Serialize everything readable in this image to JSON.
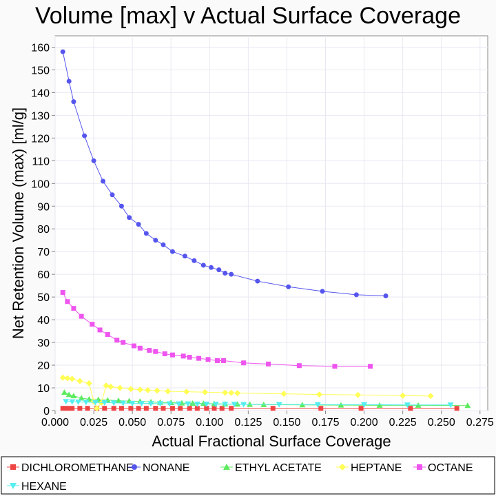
{
  "chart_data": {
    "type": "line",
    "title": "Volume [max] v Actual Surface Coverage",
    "xlabel": "Actual Fractional Surface Coverage",
    "ylabel": "Net Retention Volume (max) [ml/g]",
    "xlim": [
      0,
      0.28
    ],
    "ylim": [
      0,
      165
    ],
    "xticks": [
      "0.000",
      "0.025",
      "0.050",
      "0.075",
      "0.100",
      "0.125",
      "0.150",
      "0.175",
      "0.200",
      "0.225",
      "0.250",
      "0.275"
    ],
    "yticks": [
      "0",
      "10",
      "20",
      "30",
      "40",
      "50",
      "60",
      "70",
      "80",
      "90",
      "100",
      "110",
      "120",
      "130",
      "140",
      "150",
      "160"
    ],
    "grid": true,
    "legend_position": "bottom",
    "series": [
      {
        "name": "DICHLOROMETHANE",
        "color": "#ef4444",
        "marker": "square",
        "x": [
          0.005,
          0.008,
          0.011,
          0.016,
          0.021,
          0.027,
          0.032,
          0.038,
          0.043,
          0.049,
          0.054,
          0.059,
          0.065,
          0.07,
          0.076,
          0.081,
          0.087,
          0.092,
          0.098,
          0.103,
          0.108,
          0.114,
          0.141,
          0.172,
          0.198,
          0.23,
          0.26
        ],
        "y": [
          1,
          1,
          1,
          1,
          1,
          1,
          1,
          1,
          1,
          1,
          1,
          1,
          1,
          1,
          1,
          1,
          1,
          1,
          1,
          1,
          1,
          1,
          1,
          1,
          1,
          1,
          1
        ]
      },
      {
        "name": "NONANE",
        "color": "#5555ee",
        "marker": "circle",
        "x": [
          0.005,
          0.009,
          0.012,
          0.019,
          0.025,
          0.031,
          0.037,
          0.043,
          0.048,
          0.054,
          0.059,
          0.065,
          0.07,
          0.076,
          0.084,
          0.09,
          0.096,
          0.101,
          0.106,
          0.11,
          0.114,
          0.131,
          0.151,
          0.173,
          0.195,
          0.214
        ],
        "y": [
          158,
          145,
          136,
          121,
          110,
          101,
          95,
          90,
          85,
          82,
          78,
          75,
          73,
          70,
          68,
          66,
          64,
          63,
          62,
          60.5,
          60,
          57,
          54.5,
          52.5,
          51,
          50.5
        ]
      },
      {
        "name": "ETHYL ACETATE",
        "color": "#5eea5e",
        "marker": "triangle-up",
        "x": [
          0.006,
          0.009,
          0.012,
          0.017,
          0.022,
          0.028,
          0.034,
          0.041,
          0.048,
          0.055,
          0.062,
          0.068,
          0.075,
          0.082,
          0.089,
          0.096,
          0.103,
          0.11,
          0.118,
          0.126,
          0.135,
          0.16,
          0.185,
          0.21,
          0.235,
          0.267
        ],
        "y": [
          8,
          7,
          6.5,
          5.5,
          5,
          4.8,
          4.6,
          4.4,
          4.2,
          4,
          3.8,
          3.6,
          3.5,
          3.3,
          3.2,
          3.1,
          3,
          2.9,
          2.8,
          2.7,
          2.6,
          2.5,
          2.4,
          2.3,
          2.3,
          2.2
        ]
      },
      {
        "name": "HEPTANE",
        "color": "#ffff55",
        "marker": "diamond",
        "x": [
          0.005,
          0.008,
          0.011,
          0.016,
          0.022,
          0.025,
          0.027,
          0.03,
          0.033,
          0.036,
          0.042,
          0.049,
          0.055,
          0.06,
          0.066,
          0.073,
          0.085,
          0.097,
          0.11,
          0.114,
          0.118,
          0.148,
          0.171,
          0.196,
          0.225,
          0.243
        ],
        "y": [
          14.5,
          14.2,
          14,
          13,
          12,
          4,
          1,
          3.5,
          11,
          10.5,
          10,
          9.5,
          9.2,
          9,
          8.8,
          8.5,
          8.3,
          8.1,
          7.9,
          7.8,
          7.7,
          7.4,
          7.1,
          6.9,
          6.6,
          6.4
        ]
      },
      {
        "name": "OCTANE",
        "color": "#ee55ee",
        "marker": "square",
        "x": [
          0.005,
          0.008,
          0.012,
          0.017,
          0.024,
          0.029,
          0.034,
          0.04,
          0.044,
          0.051,
          0.055,
          0.061,
          0.065,
          0.071,
          0.076,
          0.083,
          0.087,
          0.093,
          0.099,
          0.105,
          0.109,
          0.122,
          0.138,
          0.158,
          0.181,
          0.204
        ],
        "y": [
          52,
          48,
          45,
          41.5,
          38,
          35.5,
          33.5,
          31,
          30,
          28.5,
          27.5,
          26.5,
          26,
          25,
          24.5,
          24,
          23.5,
          23,
          22.5,
          22,
          22,
          21,
          20.5,
          19.8,
          19.5,
          19.5
        ]
      },
      {
        "name": "HEXANE",
        "color": "#55eeee",
        "marker": "triangle-down",
        "x": [
          0.007,
          0.011,
          0.015,
          0.02,
          0.026,
          0.032,
          0.038,
          0.044,
          0.05,
          0.056,
          0.062,
          0.068,
          0.074,
          0.08,
          0.086,
          0.092,
          0.098,
          0.104,
          0.11,
          0.116,
          0.122,
          0.145,
          0.17,
          0.2,
          0.228,
          0.256
        ],
        "y": [
          4,
          3.9,
          3.8,
          3.7,
          3.6,
          3.5,
          3.4,
          3.3,
          3.2,
          3.2,
          3.1,
          3.1,
          3,
          3,
          3,
          2.9,
          2.9,
          2.8,
          2.8,
          2.8,
          2.7,
          2.7,
          2.6,
          2.6,
          2.5,
          2.5
        ]
      }
    ]
  }
}
